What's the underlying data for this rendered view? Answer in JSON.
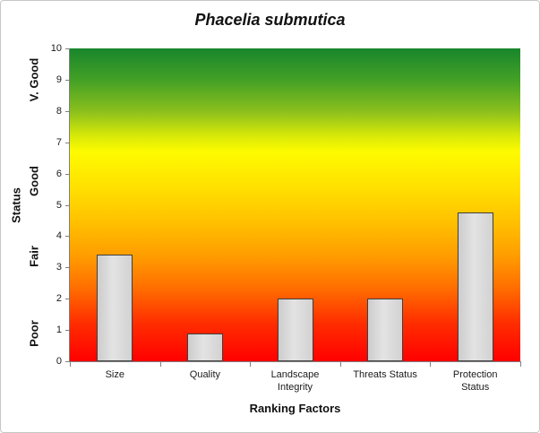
{
  "chart_data": {
    "type": "bar",
    "title": "Phacelia submutica",
    "xlabel": "Ranking Factors",
    "ylabel": "Status",
    "categories": [
      "Size",
      "Quality",
      "Landscape Integrity",
      "Threats Status",
      "Protection Status"
    ],
    "values": [
      3.4,
      0.9,
      2,
      2,
      4.75
    ],
    "ylim": [
      0,
      10
    ],
    "yticks": [
      0,
      1,
      2,
      3,
      4,
      5,
      6,
      7,
      8,
      9,
      10
    ],
    "grid": false,
    "legend": false,
    "status_bands": [
      {
        "label": "Poor",
        "center_value": 0.9
      },
      {
        "label": "Fair",
        "center_value": 3.35
      },
      {
        "label": "Good",
        "center_value": 5.75
      },
      {
        "label": "V. Good",
        "center_value": 9.0
      }
    ],
    "colors": {
      "bar_fill": "#d9d9d9",
      "bar_border": "#3f3f3f",
      "axis_line": "#808080",
      "text": "#1a1a1a",
      "background_gradient": [
        {
          "pos": "0%",
          "color": "#18862c"
        },
        {
          "pos": "10%",
          "color": "#43a026"
        },
        {
          "pos": "20%",
          "color": "#8abf1d"
        },
        {
          "pos": "28%",
          "color": "#d8e908"
        },
        {
          "pos": "33%",
          "color": "#fefb00"
        },
        {
          "pos": "45%",
          "color": "#ffdf00"
        },
        {
          "pos": "56%",
          "color": "#ffbf00"
        },
        {
          "pos": "66%",
          "color": "#ff9e00"
        },
        {
          "pos": "76%",
          "color": "#ff7100"
        },
        {
          "pos": "88%",
          "color": "#ff2d00"
        },
        {
          "pos": "100%",
          "color": "#ff0000"
        }
      ]
    }
  }
}
